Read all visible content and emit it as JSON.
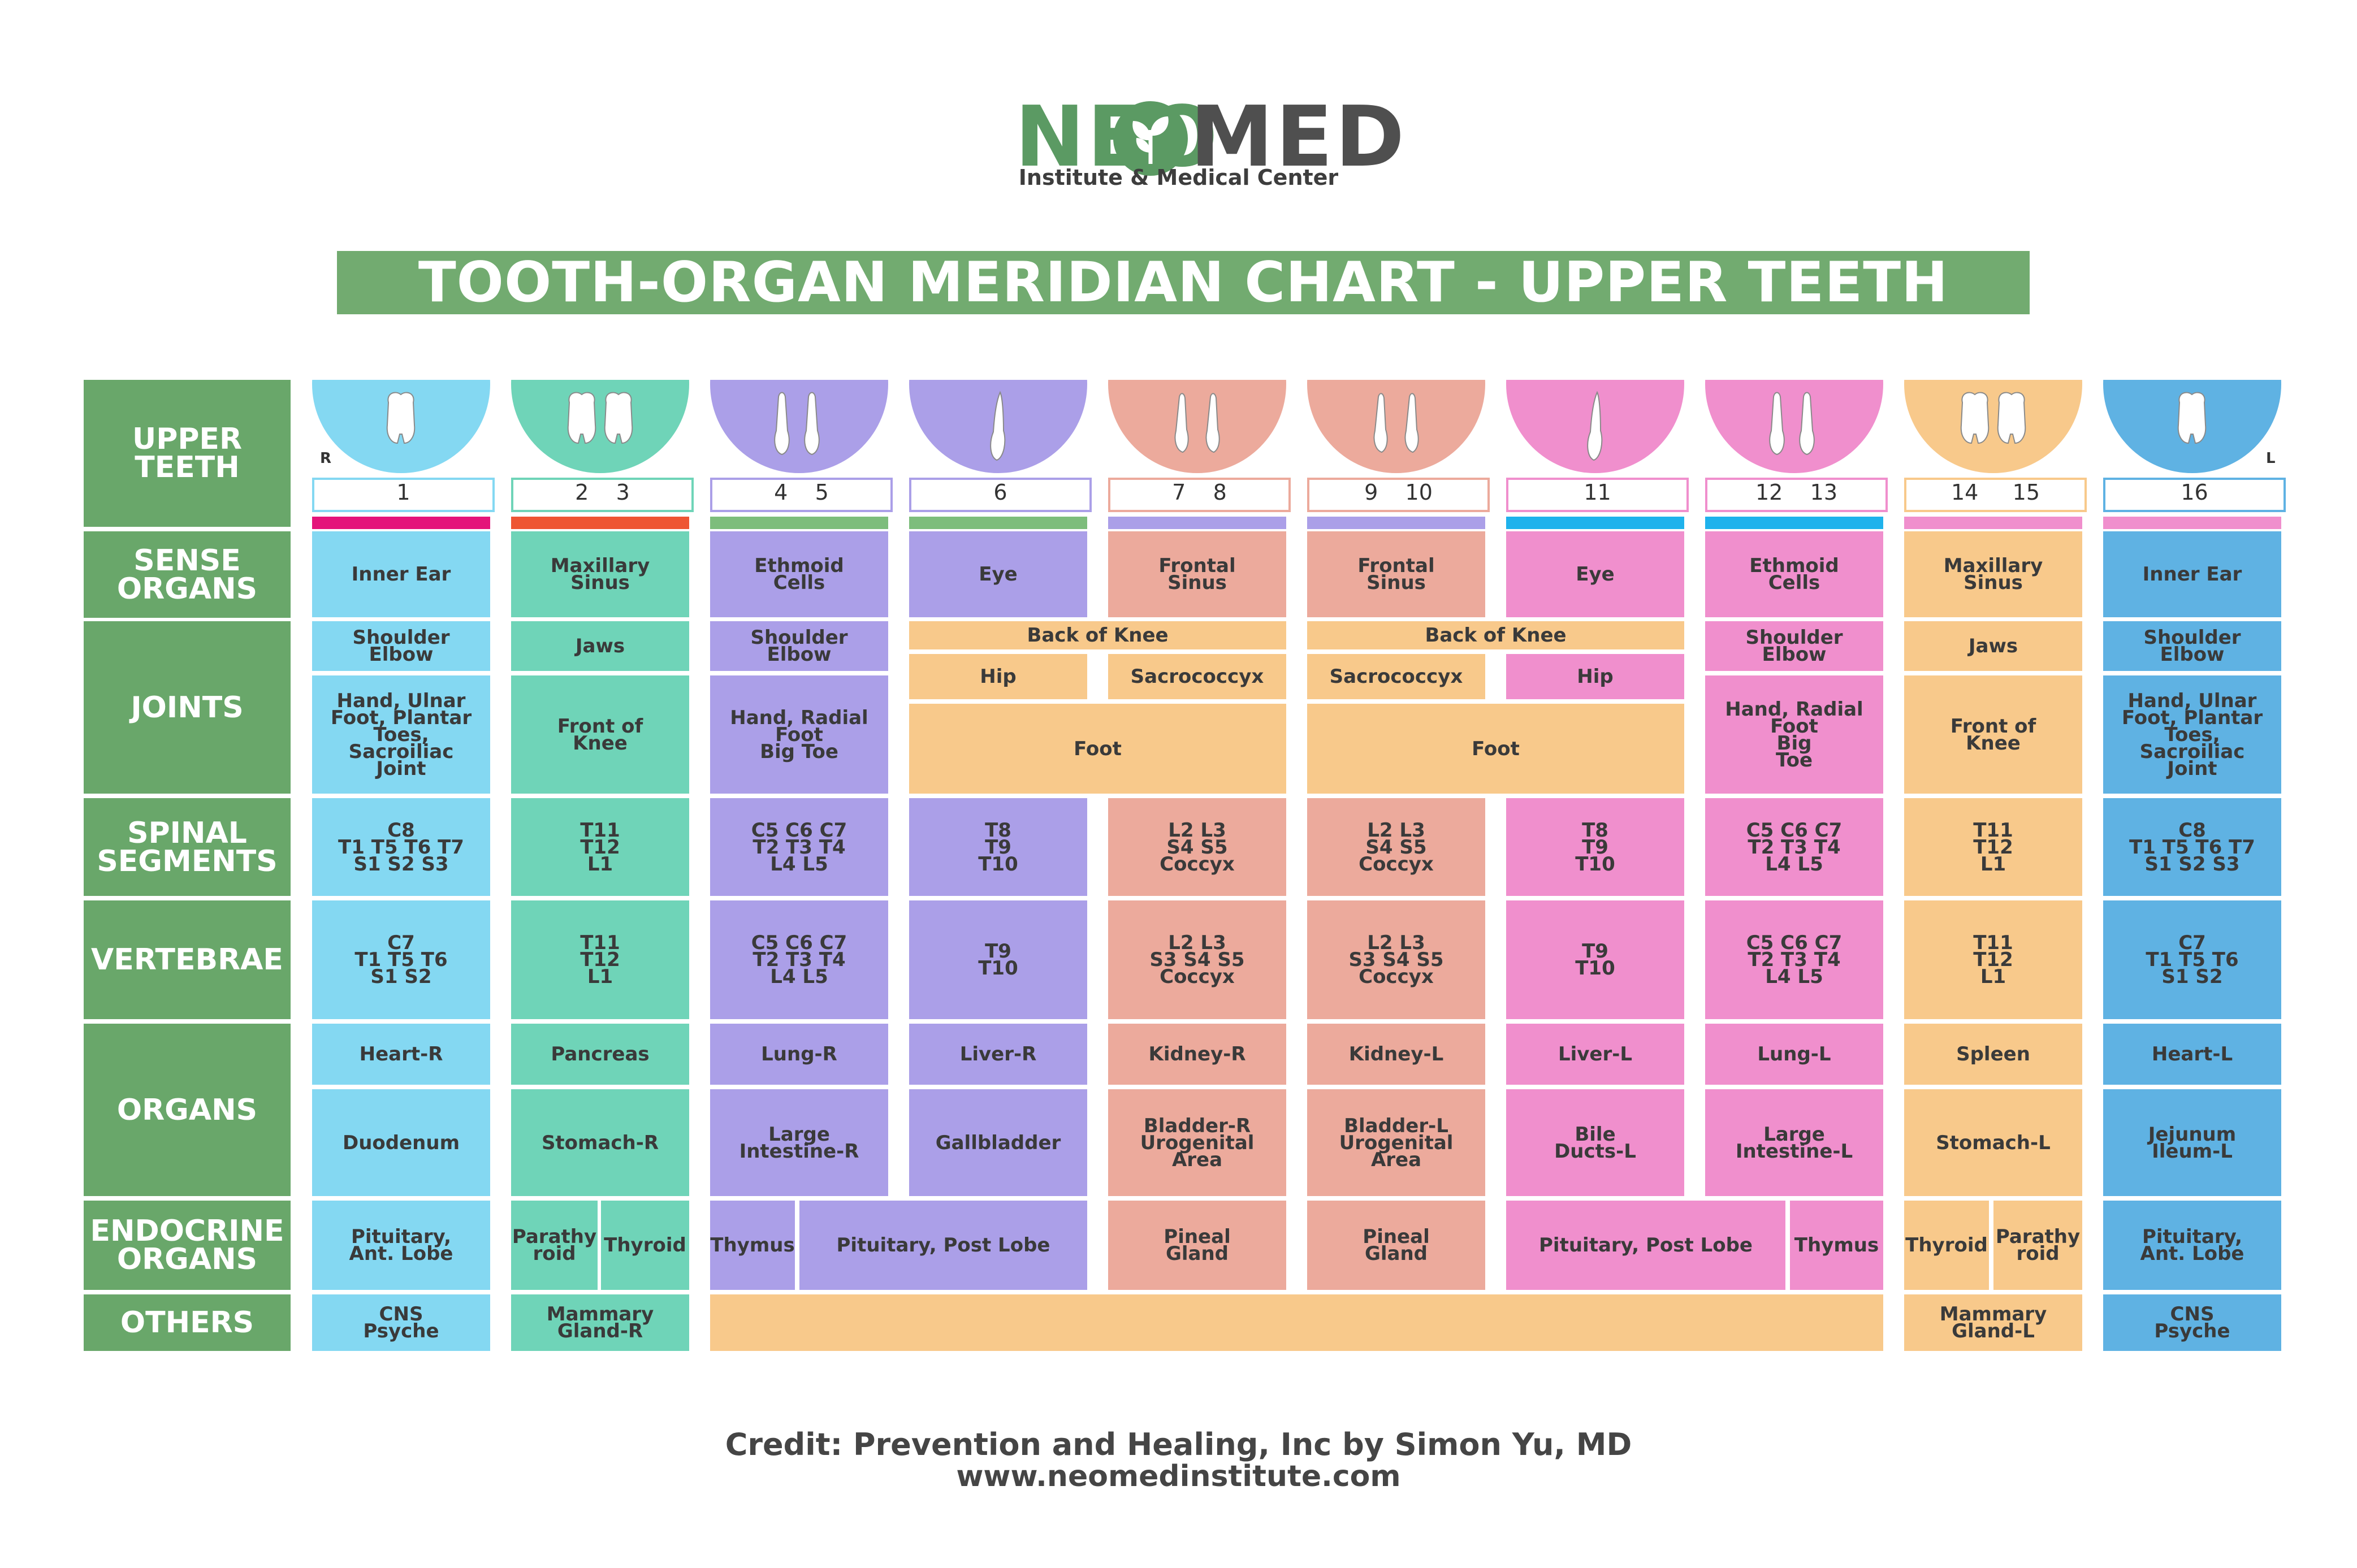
{
  "logo": {
    "neo": "NEO",
    "med": "MED",
    "subtitle": "Institute & Medical Center"
  },
  "title": "TOOTH-ORGAN MERIDIAN CHART - UPPER TEETH",
  "row_labels": {
    "upper_teeth": "UPPER\nTEETH",
    "sense_organs": "SENSE\nORGANS",
    "joints": "JOINTS",
    "spinal_segments": "SPINAL\nSEGMENTS",
    "vertebrae": "VERTEBRAE",
    "organs": "ORGANS",
    "endocrine_organs": "ENDOCRINE\nORGANS",
    "others": "OTHERS"
  },
  "side_markers": {
    "right": "R",
    "left": "L"
  },
  "colors": {
    "label_green": "#69a76a",
    "blue_light": "#84d8f2",
    "teal": "#6fd4b8",
    "purple": "#ab9fe8",
    "salmon": "#ecaa9c",
    "pink": "#f08fcd",
    "orange": "#f8c98b",
    "blue": "#5fb2e3"
  },
  "columns": [
    {
      "numbers": "1",
      "color": "#84d8f2",
      "dome": "#84d8f2",
      "stripe": "#e4147a",
      "teeth": "molar1"
    },
    {
      "numbers": "2    3",
      "color": "#6fd4b8",
      "dome": "#6fd4b8",
      "stripe": "#ee5533",
      "teeth": "molar2"
    },
    {
      "numbers": "4    5",
      "color": "#ab9fe8",
      "dome": "#ab9fe8",
      "stripe": "#7dbd7c",
      "teeth": "premolar2"
    },
    {
      "numbers": "6",
      "color": "#ab9fe8",
      "dome": "#ab9fe8",
      "stripe": "#7dbd7c",
      "teeth": "canine1"
    },
    {
      "numbers": "7    8",
      "color": "#ecaa9c",
      "dome": "#ecaa9c",
      "stripe": "#ab9fe8",
      "teeth": "incisor2"
    },
    {
      "numbers": "9    10",
      "color": "#ecaa9c",
      "dome": "#ecaa9c",
      "stripe": "#ab9fe8",
      "teeth": "incisor2"
    },
    {
      "numbers": "11",
      "color": "#f08fcd",
      "dome": "#f08fcd",
      "stripe": "#1fb2ec",
      "teeth": "canine1"
    },
    {
      "numbers": "12    13",
      "color": "#f08fcd",
      "dome": "#f08fcd",
      "stripe": "#1fb2ec",
      "teeth": "premolar2"
    },
    {
      "numbers": "14     15",
      "color": "#f8c98b",
      "dome": "#f8c98b",
      "stripe": "#f08fcd",
      "teeth": "molar2"
    },
    {
      "numbers": "16",
      "color": "#5fb2e3",
      "dome": "#5fb2e3",
      "stripe": "#f08fcd",
      "teeth": "molar1"
    }
  ],
  "cells": {
    "c1": {
      "sense": "Inner Ear",
      "joint1": "Shoulder\nElbow",
      "joint2": "Hand, Ulnar\nFoot, Plantar\nToes,\nSacroiliac\nJoint",
      "spinal": "C8\nT1 T5 T6 T7\nS1 S2 S3",
      "vert": "C7\nT1 T5 T6\nS1 S2",
      "organ1": "Heart-R",
      "organ2": "Duodenum",
      "endo": "Pituitary,\nAnt. Lobe",
      "other": "CNS\nPsyche"
    },
    "c2": {
      "sense": "Maxillary\nSinus",
      "joint1": "Jaws",
      "joint2": "Front of\nKnee",
      "spinal": "T11\nT12\nL1",
      "vert": "T11\nT12\nL1",
      "organ1": "Pancreas",
      "organ2": "Stomach-R",
      "endo_a": "Parathy\nroid",
      "endo_b": "Thyroid",
      "other": "Mammary\nGland-R"
    },
    "c3": {
      "sense": "Ethmoid\nCells",
      "joint1": "Shoulder\nElbow",
      "joint2": "Hand, Radial\nFoot\nBig Toe",
      "spinal": "C5 C6 C7\nT2 T3 T4\nL4 L5",
      "vert": "C5 C6 C7\nT2 T3 T4\nL4 L5",
      "organ1": "Lung-R",
      "organ2": "Large\nIntestine-R",
      "endo_a": "Thymus"
    },
    "c4": {
      "sense": "Eye",
      "hip": "Hip",
      "spinal": "T8\nT9\nT10",
      "vert": "T9\nT10",
      "organ1": "Liver-R",
      "organ2": "Gallbladder"
    },
    "endo_34": "Pituitary, Post Lobe",
    "knee_45": "Back of Knee",
    "foot_45": "Foot",
    "c5": {
      "sense": "Frontal\nSinus",
      "sacro": "Sacrococcyx",
      "spinal": "L2 L3\nS4 S5\nCoccyx",
      "vert": "L2 L3\nS3 S4 S5\nCoccyx",
      "organ1": "Kidney-R",
      "organ2": "Bladder-R\nUrogenital\nArea",
      "endo": "Pineal\nGland"
    },
    "c6": {
      "sense": "Frontal\nSinus",
      "sacro": "Sacrococcyx",
      "spinal": "L2 L3\nS4 S5\nCoccyx",
      "vert": "L2 L3\nS3 S4 S5\nCoccyx",
      "organ1": "Kidney-L",
      "organ2": "Bladder-L\nUrogenital\nArea",
      "endo": "Pineal\nGland"
    },
    "knee_67": "Back of Knee",
    "foot_67": "Foot",
    "c7": {
      "sense": "Eye",
      "hip": "Hip",
      "spinal": "T8\nT9\nT10",
      "vert": "T9\nT10",
      "organ1": "Liver-L",
      "organ2": "Bile\nDucts-L"
    },
    "endo_78": "Pituitary, Post Lobe",
    "c8": {
      "sense": "Ethmoid\nCells",
      "joint1": "Shoulder\nElbow",
      "joint2": "Hand, Radial\nFoot\nBig\nToe",
      "spinal": "C5 C6 C7\nT2 T3 T4\nL4 L5",
      "vert": "C5 C6 C7\nT2 T3 T4\nL4 L5",
      "organ1": "Lung-L",
      "organ2": "Large\nIntestine-L",
      "endo_b": "Thymus"
    },
    "c9": {
      "sense": "Maxillary\nSinus",
      "joint1": "Jaws",
      "joint2": "Front of\nKnee",
      "spinal": "T11\nT12\nL1",
      "vert": "T11\nT12\nL1",
      "organ1": "Spleen",
      "organ2": "Stomach-L",
      "endo_a": "Thyroid",
      "endo_b": "Parathy\nroid",
      "other": "Mammary\nGland-L"
    },
    "c10": {
      "sense": "Inner Ear",
      "joint1": "Shoulder\nElbow",
      "joint2": "Hand, Ulnar\nFoot, Plantar\nToes,\nSacroiliac\nJoint",
      "spinal": "C8\nT1 T5 T6 T7\nS1 S2 S3",
      "vert": "C7\nT1 T5 T6\nS1 S2",
      "organ1": "Heart-L",
      "organ2": "Jejunum\nIleum-L",
      "endo": "Pituitary,\nAnt. Lobe",
      "other": "CNS\nPsyche"
    }
  },
  "credit": {
    "line1": "Credit: Prevention and Healing, Inc by Simon Yu, MD",
    "line2": "www.neomedinstitute.com"
  }
}
